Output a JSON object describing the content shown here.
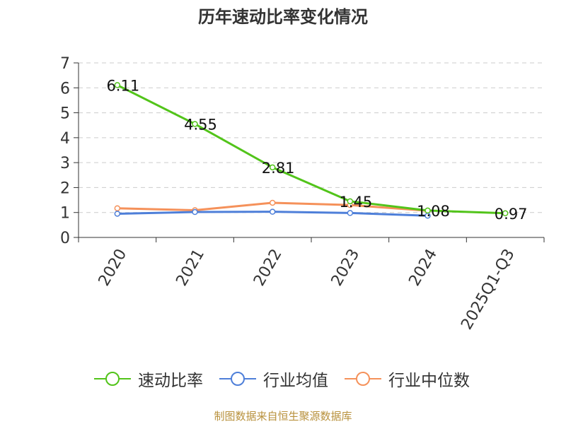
{
  "source": "制图数据来自恒生聚源数据库",
  "chart_data": {
    "type": "line",
    "title": "历年速动比率变化情况",
    "xlabel": "",
    "ylabel": "",
    "categories": [
      "2020",
      "2021",
      "2022",
      "2023",
      "2024",
      "2025Q1-Q3"
    ],
    "ylim": [
      0,
      7
    ],
    "yticks": [
      "0",
      "1",
      "2",
      "3",
      "4",
      "5",
      "6",
      "7"
    ],
    "grid": true,
    "legend_position": "bottom",
    "series": [
      {
        "name": "速动比率",
        "color": "#52c41a",
        "values": [
          6.11,
          4.55,
          2.81,
          1.45,
          1.08,
          0.97
        ],
        "labels": [
          "6.11",
          "4.55",
          "2.81",
          "1.45",
          "1.08",
          "0.97"
        ]
      },
      {
        "name": "行业均值",
        "color": "#4e7fd9",
        "values": [
          0.95,
          1.02,
          1.03,
          0.98,
          0.87,
          null
        ]
      },
      {
        "name": "行业中位数",
        "color": "#f5915a",
        "values": [
          1.17,
          1.09,
          1.39,
          1.3,
          1.07,
          null
        ]
      }
    ]
  }
}
